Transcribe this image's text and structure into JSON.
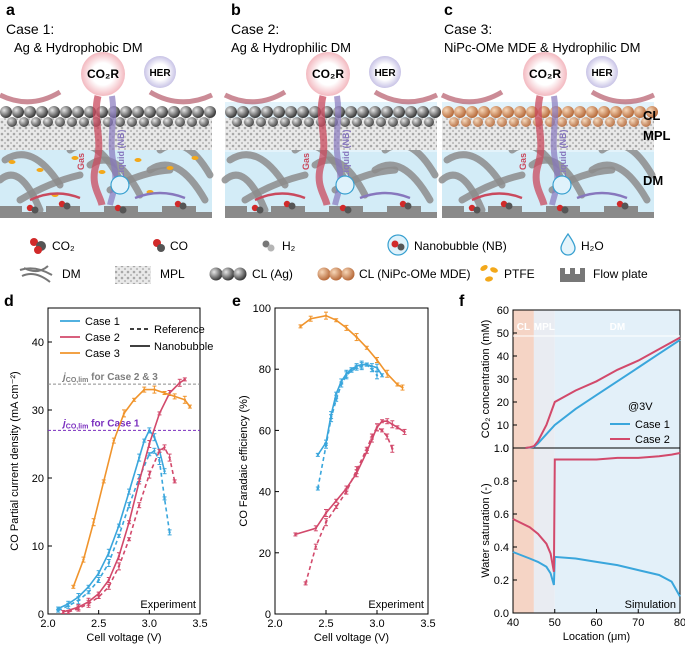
{
  "colors": {
    "case1": "#3aa6dc",
    "case2": "#d2496b",
    "case3": "#f0942c",
    "case2and3_line": "#8d8d8d",
    "case1_line": "#7a2fbf",
    "water": "#d3ecf7",
    "gas": "#c94a5e",
    "liquid": "#8777bd"
  },
  "panels": {
    "a": {
      "letter": "a",
      "case": "Case 1:",
      "title": "Ag & Hydrophobic DM",
      "bubble_co2r": "CO₂R",
      "bubble_her": "HER",
      "label_gas": "Gas",
      "label_liquid": "Liquid (NB)"
    },
    "b": {
      "letter": "b",
      "case": "Case 2:",
      "title": "Ag & Hydrophilic DM",
      "bubble_co2r": "CO₂R",
      "bubble_her": "HER",
      "label_gas": "Gas",
      "label_liquid": "Liquid (NB)"
    },
    "c": {
      "letter": "c",
      "case": "Case 3:",
      "title": "NiPc-OMe MDE & Hydrophilic DM",
      "bubble_co2r": "CO₂R",
      "bubble_her": "HER",
      "label_gas": "Gas",
      "label_liquid": "Liquid (NB)"
    }
  },
  "layer_labels": {
    "cl": "CL",
    "mpl": "MPL",
    "dm": "DM"
  },
  "legend": {
    "co2": "CO₂",
    "co": "CO",
    "h2": "H₂",
    "nb": "Nanobubble (NB)",
    "h2o": "H₂O",
    "dm": "DM",
    "mpl": "MPL",
    "cl_ag": "CL (Ag)",
    "cl_nipc": "CL (NiPc-OMe MDE)",
    "ptfe": "PTFE",
    "flow_plate": "Flow plate"
  },
  "chart_data": [
    {
      "panel": "d",
      "type": "line",
      "xlabel": "Cell voltage (V)",
      "ylabel": "CO Partial current density (mA cm⁻²)",
      "xlim": [
        2.0,
        3.5
      ],
      "ylim": [
        0,
        45
      ],
      "xticks": [
        "2.0",
        "2.5",
        "3.0",
        "3.5"
      ],
      "yticks": [
        "0",
        "10",
        "20",
        "30",
        "40"
      ],
      "legend_entries": [
        "Case 1",
        "Case 2",
        "Case 3",
        "Reference",
        "Nanobubble"
      ],
      "annotation": "Experiment",
      "ref_line_case23": {
        "label": "j",
        "sub": "CO,lim",
        "suffix": " for Case 2 & 3",
        "value": 33.8
      },
      "ref_line_case1": {
        "label": "j",
        "sub": "CO,lim",
        "suffix": " for Case 1",
        "value": 27.0
      },
      "series": [
        {
          "name": "Case 1",
          "style": "solid",
          "x": [
            2.1,
            2.2,
            2.3,
            2.4,
            2.5,
            2.6,
            2.7,
            2.8,
            2.9,
            2.95,
            3.0,
            3.05,
            3.1,
            3.15
          ],
          "y": [
            0.8,
            1.5,
            2.5,
            4.0,
            6.0,
            9.0,
            13.0,
            18.0,
            23.0,
            25.5,
            27.0,
            26.0,
            24.0,
            21.0
          ]
        },
        {
          "name": "Case 1 (Reference)",
          "style": "dashed",
          "x": [
            2.1,
            2.2,
            2.3,
            2.4,
            2.5,
            2.6,
            2.7,
            2.8,
            2.9,
            3.0,
            3.05,
            3.1,
            3.15,
            3.2
          ],
          "y": [
            0.5,
            1.2,
            2.0,
            3.2,
            5.0,
            7.5,
            11.5,
            16.0,
            20.0,
            23.5,
            24.0,
            22.5,
            17.0,
            12.0
          ]
        },
        {
          "name": "Case 2",
          "style": "solid",
          "x": [
            2.15,
            2.3,
            2.4,
            2.5,
            2.6,
            2.7,
            2.8,
            2.9,
            3.0,
            3.1,
            3.2,
            3.3,
            3.35
          ],
          "y": [
            0.3,
            1.0,
            1.8,
            3.0,
            5.0,
            8.5,
            13.5,
            19.5,
            25.0,
            29.5,
            32.5,
            34.0,
            34.5
          ]
        },
        {
          "name": "Case 2 (Reference)",
          "style": "dashed",
          "x": [
            2.2,
            2.3,
            2.4,
            2.5,
            2.6,
            2.7,
            2.8,
            2.9,
            3.0,
            3.1,
            3.15,
            3.2,
            3.25
          ],
          "y": [
            0.3,
            0.8,
            1.5,
            2.5,
            4.0,
            7.0,
            11.0,
            16.0,
            20.5,
            24.0,
            24.5,
            23.0,
            19.5
          ]
        },
        {
          "name": "Case 3",
          "style": "solid",
          "x": [
            2.25,
            2.35,
            2.45,
            2.55,
            2.65,
            2.75,
            2.85,
            2.95,
            3.05,
            3.15,
            3.25,
            3.35,
            3.4
          ],
          "y": [
            4.0,
            8.0,
            13.5,
            19.5,
            25.5,
            29.5,
            31.5,
            33.0,
            33.0,
            32.5,
            32.0,
            31.5,
            30.5
          ]
        }
      ]
    },
    {
      "panel": "e",
      "type": "line",
      "xlabel": "Cell voltage (V)",
      "ylabel": "CO Faradaic efficiency (%)",
      "xlim": [
        2.0,
        3.5
      ],
      "ylim": [
        0,
        100
      ],
      "xticks": [
        "2.0",
        "2.5",
        "3.0",
        "3.5"
      ],
      "yticks": [
        "0",
        "20",
        "40",
        "60",
        "80",
        "100"
      ],
      "annotation": "Experiment",
      "series": [
        {
          "name": "Case 1",
          "style": "solid",
          "x": [
            2.42,
            2.5,
            2.55,
            2.6,
            2.65,
            2.7,
            2.75,
            2.8,
            2.85,
            2.9,
            2.95,
            3.0,
            3.05
          ],
          "y": [
            52,
            56,
            65,
            72,
            76,
            78.5,
            80,
            81,
            81.5,
            81.5,
            81,
            80.5,
            78
          ]
        },
        {
          "name": "Case 1 (Reference)",
          "style": "dashed",
          "x": [
            2.42,
            2.5,
            2.55,
            2.6,
            2.65,
            2.7,
            2.75,
            2.8,
            2.85,
            2.9,
            2.95,
            3.0
          ],
          "y": [
            41,
            55,
            64,
            70,
            75,
            78,
            79.5,
            80.5,
            81,
            81.5,
            80,
            78
          ]
        },
        {
          "name": "Case 2",
          "style": "solid",
          "x": [
            2.2,
            2.4,
            2.5,
            2.6,
            2.7,
            2.8,
            2.9,
            2.95,
            3.0,
            3.05,
            3.1,
            3.15,
            3.2,
            3.27
          ],
          "y": [
            26,
            28,
            33,
            37,
            41,
            46,
            53,
            57,
            61,
            63,
            63,
            62,
            61,
            59.5
          ]
        },
        {
          "name": "Case 2 (Reference)",
          "style": "dashed",
          "x": [
            2.3,
            2.4,
            2.5,
            2.6,
            2.7,
            2.8,
            2.9,
            2.95,
            3.0,
            3.05,
            3.1,
            3.15
          ],
          "y": [
            10,
            22,
            30,
            35,
            40,
            47,
            54,
            58,
            61,
            60,
            58,
            54
          ]
        },
        {
          "name": "Case 3",
          "style": "solid",
          "x": [
            2.25,
            2.35,
            2.5,
            2.6,
            2.7,
            2.8,
            2.9,
            3.0,
            3.1,
            3.2,
            3.25
          ],
          "y": [
            94,
            96.5,
            97.5,
            96,
            93.5,
            90.5,
            87,
            83,
            78.5,
            75,
            74
          ]
        }
      ]
    },
    {
      "panel": "f-top",
      "type": "line",
      "xlim": [
        40,
        80
      ],
      "ylim": [
        0,
        60
      ],
      "ylabel": "CO₂ concentration (mM)",
      "yticks": [
        "0",
        "10",
        "20",
        "30",
        "40",
        "50",
        "60"
      ],
      "region_labels": [
        "CL",
        "MPL",
        "DM"
      ],
      "annotation": "@3V",
      "legend_entries": [
        "Case 1",
        "Case 2"
      ],
      "series": [
        {
          "name": "Case 1",
          "x": [
            43,
            44,
            45,
            46,
            48,
            50,
            55,
            60,
            65,
            70,
            75,
            80
          ],
          "y": [
            0,
            0.2,
            0.5,
            2,
            6,
            10,
            17,
            23,
            29,
            35,
            41,
            47
          ]
        },
        {
          "name": "Case 2",
          "x": [
            43,
            44,
            45,
            46,
            48,
            50,
            55,
            60,
            65,
            70,
            75,
            80
          ],
          "y": [
            0,
            0.3,
            0.8,
            3,
            10,
            20,
            25,
            29,
            34,
            38,
            43,
            48
          ]
        }
      ]
    },
    {
      "panel": "f-bottom",
      "type": "line",
      "xlim": [
        40,
        80
      ],
      "ylim": [
        0,
        1.0
      ],
      "xlabel": "Location (μm)",
      "ylabel": "Water saturation (-)",
      "xticks": [
        "40",
        "50",
        "60",
        "70",
        "80"
      ],
      "yticks": [
        "0.0",
        "0.2",
        "0.4",
        "0.6",
        "0.8",
        "1.0"
      ],
      "annotation": "Simulation",
      "series": [
        {
          "name": "Case 1",
          "x": [
            40,
            44,
            46,
            48,
            49,
            49.8,
            50,
            55,
            60,
            65,
            70,
            75,
            78,
            80
          ],
          "y": [
            0.37,
            0.33,
            0.31,
            0.28,
            0.24,
            0.17,
            0.34,
            0.33,
            0.31,
            0.29,
            0.26,
            0.23,
            0.19,
            0.1
          ]
        },
        {
          "name": "Case 2",
          "x": [
            40,
            44,
            46,
            48,
            49,
            49.8,
            50,
            55,
            60,
            65,
            70,
            75,
            78,
            80
          ],
          "y": [
            0.57,
            0.52,
            0.48,
            0.42,
            0.36,
            0.25,
            0.93,
            0.93,
            0.93,
            0.94,
            0.94,
            0.95,
            0.96,
            0.97
          ]
        }
      ]
    }
  ],
  "axis_letters": {
    "d": "d",
    "e": "e",
    "f": "f"
  }
}
